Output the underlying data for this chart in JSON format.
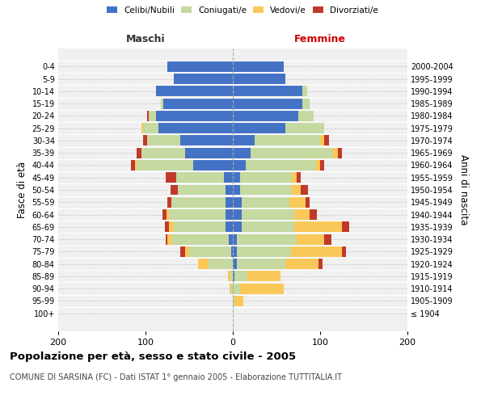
{
  "age_groups": [
    "100+",
    "95-99",
    "90-94",
    "85-89",
    "80-84",
    "75-79",
    "70-74",
    "65-69",
    "60-64",
    "55-59",
    "50-54",
    "45-49",
    "40-44",
    "35-39",
    "30-34",
    "25-29",
    "20-24",
    "15-19",
    "10-14",
    "5-9",
    "0-4"
  ],
  "birth_years": [
    "≤ 1904",
    "1905-1909",
    "1910-1914",
    "1915-1919",
    "1920-1924",
    "1925-1929",
    "1930-1934",
    "1935-1939",
    "1940-1944",
    "1945-1949",
    "1950-1954",
    "1955-1959",
    "1960-1964",
    "1965-1969",
    "1970-1974",
    "1975-1979",
    "1980-1984",
    "1985-1989",
    "1990-1994",
    "1995-1999",
    "2000-2004"
  ],
  "males": {
    "celibi": [
      0,
      0,
      0,
      0,
      0,
      2,
      5,
      8,
      8,
      8,
      8,
      10,
      45,
      55,
      60,
      85,
      88,
      80,
      88,
      68,
      75
    ],
    "coniugati": [
      0,
      0,
      2,
      3,
      28,
      48,
      65,
      60,
      65,
      62,
      55,
      55,
      65,
      50,
      38,
      18,
      8,
      2,
      0,
      0,
      0
    ],
    "vedovi": [
      0,
      0,
      2,
      3,
      12,
      5,
      5,
      5,
      3,
      0,
      0,
      0,
      2,
      0,
      0,
      2,
      0,
      0,
      0,
      0,
      0
    ],
    "divorziati": [
      0,
      0,
      0,
      0,
      0,
      5,
      2,
      5,
      5,
      5,
      8,
      12,
      5,
      5,
      5,
      0,
      2,
      0,
      0,
      0,
      0
    ]
  },
  "females": {
    "nubili": [
      0,
      0,
      0,
      2,
      5,
      5,
      5,
      10,
      10,
      10,
      8,
      8,
      15,
      20,
      25,
      60,
      75,
      80,
      80,
      60,
      58
    ],
    "coniugate": [
      0,
      2,
      8,
      15,
      55,
      62,
      68,
      60,
      60,
      55,
      60,
      60,
      80,
      95,
      75,
      45,
      18,
      8,
      5,
      0,
      0
    ],
    "vedove": [
      0,
      10,
      50,
      38,
      38,
      58,
      32,
      55,
      18,
      18,
      10,
      5,
      5,
      5,
      5,
      0,
      0,
      0,
      0,
      0,
      0
    ],
    "divorziate": [
      0,
      0,
      0,
      0,
      5,
      5,
      8,
      8,
      8,
      5,
      8,
      5,
      5,
      5,
      5,
      0,
      0,
      0,
      0,
      0,
      0
    ]
  },
  "colors": {
    "celibi": "#4472C4",
    "coniugati": "#C5D9A0",
    "vedovi": "#FAC858",
    "divorziati": "#C0392B"
  },
  "xlim": [
    -200,
    200
  ],
  "xticks": [
    -200,
    -100,
    0,
    100,
    200
  ],
  "xticklabels": [
    "200",
    "100",
    "0",
    "100",
    "200"
  ],
  "title": "Popolazione per età, sesso e stato civile - 2005",
  "subtitle": "COMUNE DI SARSINA (FC) - Dati ISTAT 1° gennaio 2005 - Elaborazione TUTTITALIA.IT",
  "ylabel_left": "Fasce di età",
  "ylabel_right": "Anni di nascita",
  "label_maschi": "Maschi",
  "label_femmine": "Femmine",
  "legend_labels": [
    "Celibi/Nubili",
    "Coniugati/e",
    "Vedovi/e",
    "Divorziati/e"
  ],
  "background_color": "#f0f0f0",
  "bar_height": 0.85
}
